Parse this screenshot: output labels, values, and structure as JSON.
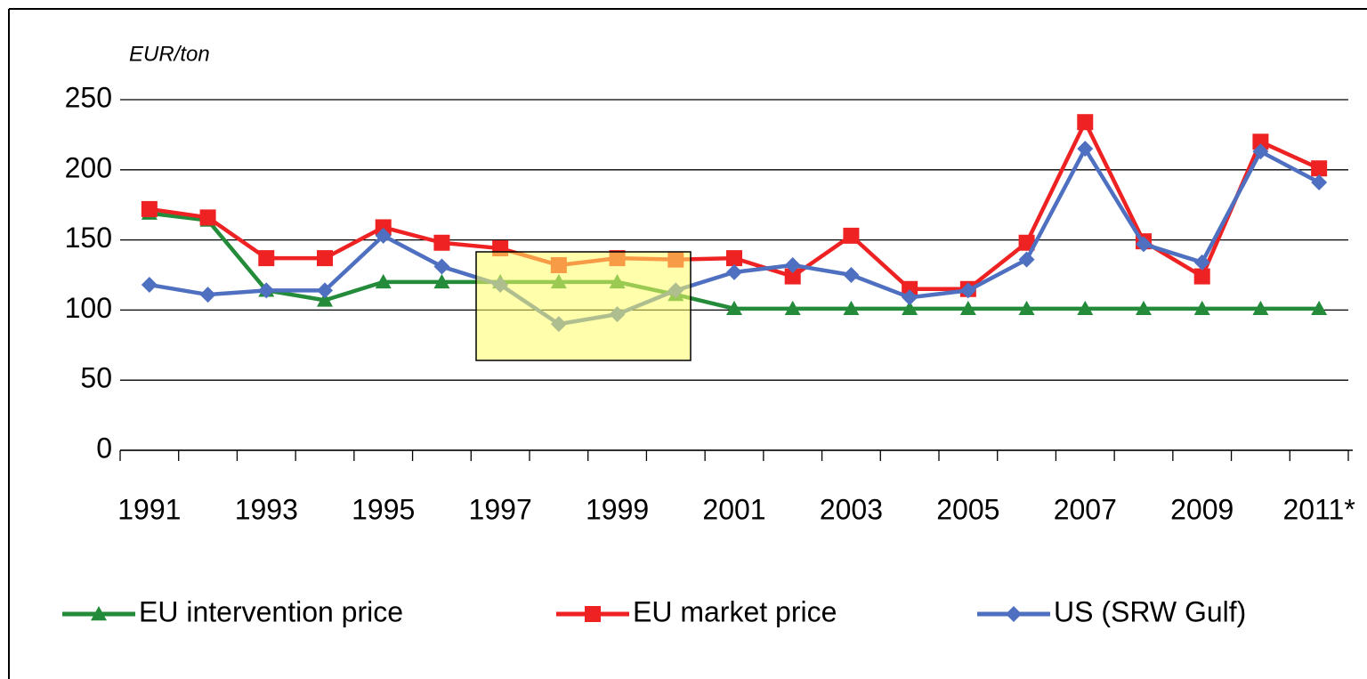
{
  "chart_data": {
    "type": "line",
    "y_axis_label": "EUR/ton",
    "categories": [
      "1991",
      null,
      "1993",
      null,
      "1995",
      null,
      "1997",
      null,
      "1999",
      null,
      "2001",
      null,
      "2003",
      null,
      "2005",
      null,
      "2007",
      null,
      "2009",
      null,
      "2011*"
    ],
    "series": [
      {
        "name": "EU intervention price",
        "color": "#238b3a",
        "marker": "triangle",
        "values": [
          169,
          164,
          114,
          107,
          120,
          120,
          120,
          120,
          120,
          111,
          101,
          101,
          101,
          101,
          101,
          101,
          101,
          101,
          101,
          101,
          101
        ]
      },
      {
        "name": "EU market price",
        "color": "#ee2222",
        "marker": "square",
        "values": [
          172,
          166,
          137,
          137,
          159,
          148,
          144,
          132,
          137,
          136,
          137,
          124,
          153,
          115,
          115,
          148,
          234,
          149,
          124,
          220,
          201
        ]
      },
      {
        "name": "US (SRW Gulf)",
        "color": "#4f6fc0",
        "marker": "diamond",
        "values": [
          118,
          111,
          114,
          114,
          153,
          131,
          118,
          90,
          97,
          114,
          127,
          132,
          125,
          109,
          114,
          136,
          215,
          147,
          134,
          213,
          191
        ]
      }
    ],
    "ylim": [
      0,
      250
    ],
    "yticks": [
      0,
      50,
      100,
      150,
      200,
      250
    ],
    "grid": true,
    "legend": "bottom"
  }
}
